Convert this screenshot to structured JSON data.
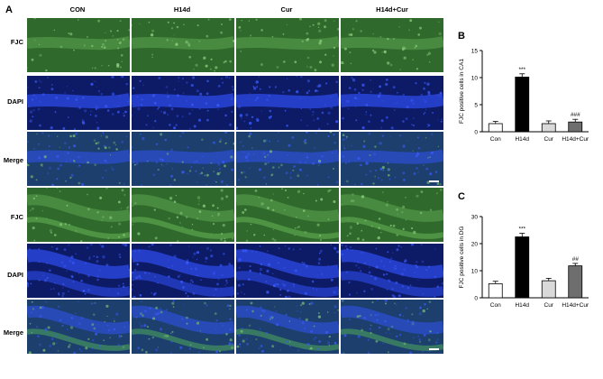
{
  "panel_a": {
    "letter": "A",
    "columns": [
      "CON",
      "H14d",
      "Cur",
      "H14d+Cur"
    ],
    "rows": [
      "FJC",
      "DAPI",
      "Merge",
      "FJC",
      "DAPI",
      "Merge"
    ],
    "row_types": [
      "fjc",
      "dapi",
      "merge",
      "fjc",
      "dapi",
      "merge"
    ]
  },
  "chart_data": [
    {
      "panel": "B",
      "type": "bar",
      "categories": [
        "Con",
        "H14d",
        "Cur",
        "H14d+Cur"
      ],
      "values": [
        1.5,
        10.1,
        1.5,
        1.8
      ],
      "errors": [
        0.4,
        0.6,
        0.5,
        0.5
      ],
      "annotations": [
        "",
        "***",
        "",
        "###"
      ],
      "fills": [
        "#ffffff",
        "#000000",
        "#d9d9d9",
        "#6e6e6e"
      ],
      "xlabel": "",
      "ylabel": "FJC positive cells in CA1",
      "ylim": [
        0,
        15
      ],
      "yticks": [
        0,
        5,
        10,
        15
      ]
    },
    {
      "panel": "C",
      "type": "bar",
      "categories": [
        "Con",
        "H14d",
        "Cur",
        "H14d+Cur"
      ],
      "values": [
        5.2,
        22.5,
        6.3,
        11.8
      ],
      "errors": [
        0.9,
        1.3,
        0.9,
        0.9
      ],
      "annotations": [
        "",
        "***",
        "",
        "##"
      ],
      "fills": [
        "#ffffff",
        "#000000",
        "#d9d9d9",
        "#6e6e6e"
      ],
      "xlabel": "",
      "ylabel": "FJC positive cells in DG",
      "ylim": [
        0,
        30
      ],
      "yticks": [
        0,
        10,
        20,
        30
      ]
    }
  ]
}
